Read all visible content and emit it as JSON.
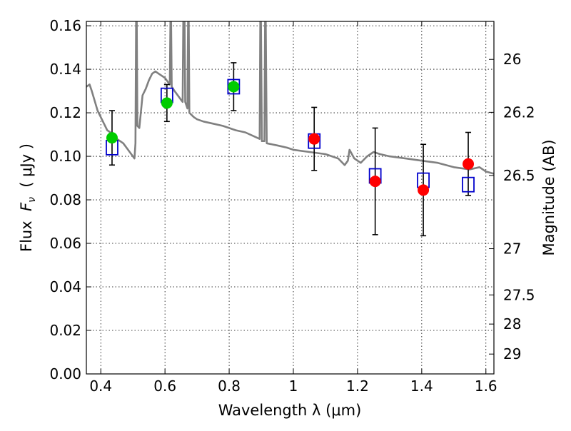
{
  "chart_data": {
    "type": "scatter",
    "xlabel": "Wavelength  λ (μm)",
    "ylabel_parts": [
      "Flux  ",
      "F",
      "ν",
      "  ( μJy )"
    ],
    "ylabel_right": "Magnitude (AB)",
    "xlim": [
      0.355,
      1.625
    ],
    "ylim": [
      0.0,
      0.162
    ],
    "grid": true,
    "x_ticks": [
      {
        "value": 0.4,
        "label": "0.4"
      },
      {
        "value": 0.6,
        "label": "0.6"
      },
      {
        "value": 0.8,
        "label": "0.8"
      },
      {
        "value": 1.0,
        "label": "1"
      },
      {
        "value": 1.2,
        "label": "1.2"
      },
      {
        "value": 1.4,
        "label": "1.4"
      },
      {
        "value": 1.6,
        "label": "1.6"
      }
    ],
    "y_ticks": [
      {
        "value": 0.0,
        "label": "0.00"
      },
      {
        "value": 0.02,
        "label": "0.02"
      },
      {
        "value": 0.04,
        "label": "0.04"
      },
      {
        "value": 0.06,
        "label": "0.06"
      },
      {
        "value": 0.08,
        "label": "0.08"
      },
      {
        "value": 0.1,
        "label": "0.10"
      },
      {
        "value": 0.12,
        "label": "0.12"
      },
      {
        "value": 0.14,
        "label": "0.14"
      },
      {
        "value": 0.16,
        "label": "0.16"
      }
    ],
    "right_ticks": [
      {
        "mag": 26,
        "label": "26"
      },
      {
        "mag": 26.2,
        "label": "26.2"
      },
      {
        "mag": 26.5,
        "label": "26.5"
      },
      {
        "mag": 27,
        "label": "27"
      },
      {
        "mag": 27.5,
        "label": "27.5"
      },
      {
        "mag": 28,
        "label": "28"
      },
      {
        "mag": 29,
        "label": "29"
      }
    ],
    "model_sed": {
      "color": "#808080",
      "points": [
        [
          0.355,
          0.132
        ],
        [
          0.365,
          0.133
        ],
        [
          0.372,
          0.13
        ],
        [
          0.38,
          0.126
        ],
        [
          0.39,
          0.121
        ],
        [
          0.4,
          0.118
        ],
        [
          0.41,
          0.115
        ],
        [
          0.42,
          0.112
        ],
        [
          0.43,
          0.111
        ],
        [
          0.44,
          0.109
        ],
        [
          0.45,
          0.108
        ],
        [
          0.46,
          0.107
        ],
        [
          0.47,
          0.106
        ],
        [
          0.48,
          0.104
        ],
        [
          0.49,
          0.102
        ],
        [
          0.5,
          0.1
        ],
        [
          0.505,
          0.099
        ],
        [
          0.508,
          0.106
        ],
        [
          0.51,
          0.162
        ],
        [
          0.512,
          0.162
        ],
        [
          0.514,
          0.114
        ],
        [
          0.52,
          0.113
        ],
        [
          0.53,
          0.128
        ],
        [
          0.54,
          0.131
        ],
        [
          0.55,
          0.135
        ],
        [
          0.56,
          0.138
        ],
        [
          0.57,
          0.139
        ],
        [
          0.58,
          0.138
        ],
        [
          0.59,
          0.137
        ],
        [
          0.6,
          0.136
        ],
        [
          0.61,
          0.134
        ],
        [
          0.615,
          0.133
        ],
        [
          0.617,
          0.162
        ],
        [
          0.619,
          0.162
        ],
        [
          0.621,
          0.132
        ],
        [
          0.63,
          0.13
        ],
        [
          0.64,
          0.128
        ],
        [
          0.65,
          0.126
        ],
        [
          0.655,
          0.125
        ],
        [
          0.657,
          0.162
        ],
        [
          0.659,
          0.162
        ],
        [
          0.661,
          0.162
        ],
        [
          0.663,
          0.125
        ],
        [
          0.67,
          0.122
        ],
        [
          0.672,
          0.162
        ],
        [
          0.674,
          0.162
        ],
        [
          0.676,
          0.12
        ],
        [
          0.69,
          0.118
        ],
        [
          0.7,
          0.117
        ],
        [
          0.72,
          0.116
        ],
        [
          0.75,
          0.115
        ],
        [
          0.78,
          0.114
        ],
        [
          0.8,
          0.113
        ],
        [
          0.82,
          0.112
        ],
        [
          0.85,
          0.111
        ],
        [
          0.88,
          0.109
        ],
        [
          0.895,
          0.108
        ],
        [
          0.897,
          0.162
        ],
        [
          0.899,
          0.162
        ],
        [
          0.902,
          0.107
        ],
        [
          0.91,
          0.107
        ],
        [
          0.912,
          0.162
        ],
        [
          0.914,
          0.162
        ],
        [
          0.917,
          0.106
        ],
        [
          0.95,
          0.105
        ],
        [
          0.98,
          0.104
        ],
        [
          1.0,
          0.103
        ],
        [
          1.05,
          0.102
        ],
        [
          1.1,
          0.101
        ],
        [
          1.14,
          0.099
        ],
        [
          1.16,
          0.096
        ],
        [
          1.17,
          0.098
        ],
        [
          1.175,
          0.103
        ],
        [
          1.19,
          0.099
        ],
        [
          1.21,
          0.097
        ],
        [
          1.23,
          0.1
        ],
        [
          1.25,
          0.102
        ],
        [
          1.27,
          0.101
        ],
        [
          1.3,
          0.1
        ],
        [
          1.35,
          0.099
        ],
        [
          1.4,
          0.098
        ],
        [
          1.45,
          0.097
        ],
        [
          1.5,
          0.095
        ],
        [
          1.55,
          0.094
        ],
        [
          1.58,
          0.095
        ],
        [
          1.6,
          0.093
        ],
        [
          1.625,
          0.092
        ]
      ]
    },
    "series": [
      {
        "marker": "open-square",
        "color": "#0000cc",
        "points": [
          {
            "x": 0.435,
            "y": 0.104
          },
          {
            "x": 0.606,
            "y": 0.128
          },
          {
            "x": 0.814,
            "y": 0.132
          },
          {
            "x": 1.065,
            "y": 0.107
          },
          {
            "x": 1.255,
            "y": 0.091
          },
          {
            "x": 1.405,
            "y": 0.089
          },
          {
            "x": 1.545,
            "y": 0.087
          }
        ]
      },
      {
        "marker": "circle",
        "color": "#00cc00",
        "points": [
          {
            "x": 0.435,
            "y": 0.1085,
            "err": 0.0125
          },
          {
            "x": 0.606,
            "y": 0.1245,
            "err": 0.0085
          },
          {
            "x": 0.814,
            "y": 0.132,
            "err": 0.011
          }
        ]
      },
      {
        "marker": "circle",
        "color": "#ff0000",
        "points": [
          {
            "x": 1.065,
            "y": 0.108,
            "err": 0.0145
          },
          {
            "x": 1.255,
            "y": 0.0885,
            "err": 0.0245
          },
          {
            "x": 1.405,
            "y": 0.0845,
            "err": 0.021
          },
          {
            "x": 1.545,
            "y": 0.0965,
            "err": 0.0145
          }
        ]
      }
    ]
  }
}
